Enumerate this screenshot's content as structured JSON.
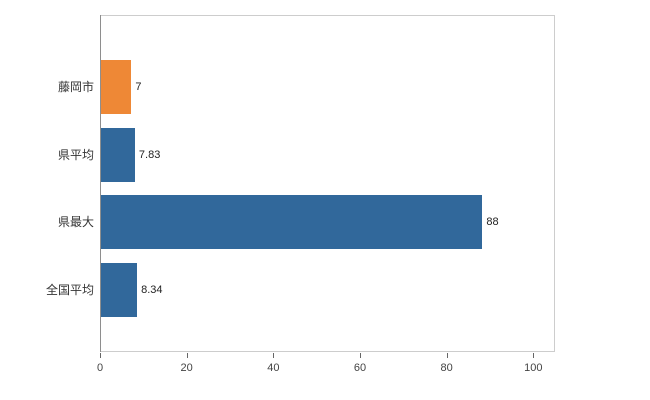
{
  "chart_data": {
    "type": "bar",
    "orientation": "horizontal",
    "title": "",
    "xlabel": "",
    "ylabel": "",
    "categories": [
      "藤岡市",
      "県平均",
      "県最大",
      "全国平均"
    ],
    "values": [
      7,
      7.83,
      88,
      8.34
    ],
    "value_labels": [
      "7",
      "7.83",
      "88",
      "8.34"
    ],
    "bar_colors": [
      "#ee8836",
      "#31689b",
      "#31689b",
      "#31689b"
    ],
    "xlim": [
      0,
      105
    ],
    "x_ticks": [
      0,
      20,
      40,
      60,
      80,
      100
    ],
    "grid": false,
    "legend": "none"
  },
  "colors": {
    "highlight_bar": "#ee8836",
    "default_bar": "#31689b",
    "plot_border": "#cdcdcd",
    "axis_line": "#8e8e8e",
    "tick": "#666666",
    "text": "#333333"
  }
}
